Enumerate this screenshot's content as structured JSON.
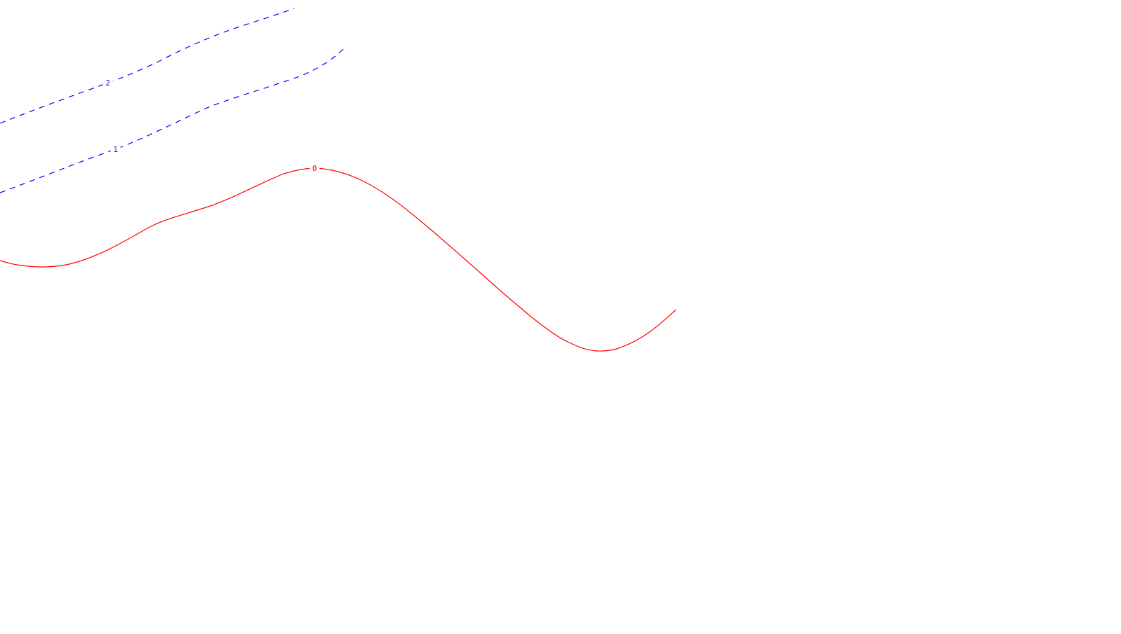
{
  "contours": [
    {
      "level_label": "2",
      "style": "dashed",
      "color": "#0000ff"
    },
    {
      "level_label": "1",
      "style": "dashed",
      "color": "#0000ff"
    },
    {
      "level_label": "0",
      "style": "solid",
      "color": "#ff0000"
    }
  ]
}
